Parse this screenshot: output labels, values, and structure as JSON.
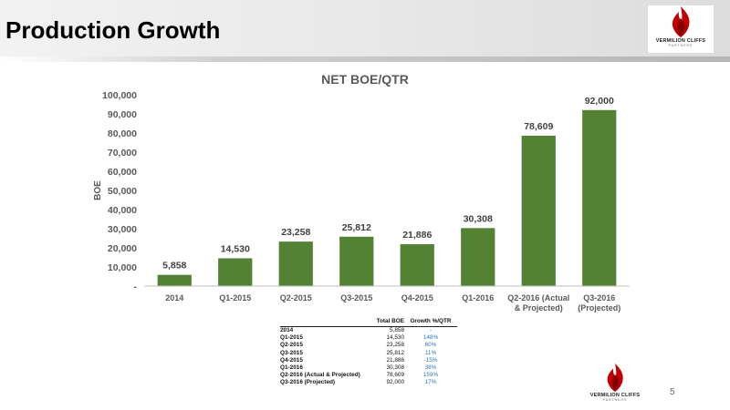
{
  "slide": {
    "title": "Production Growth",
    "page_number": "5"
  },
  "logo": {
    "name": "VERMILION CLIFFS",
    "sub": "PARTNERS",
    "icon": "flame-icon"
  },
  "colors": {
    "bar": "#548235",
    "growth_text": "#2e75b6"
  },
  "chart_data": {
    "type": "bar",
    "title": "NET BOE/QTR",
    "ylabel": "BOE",
    "xlabel": "",
    "ylim": [
      0,
      100000
    ],
    "yticks": [
      0,
      10000,
      20000,
      30000,
      40000,
      50000,
      60000,
      70000,
      80000,
      90000,
      100000
    ],
    "ytick_labels": [
      "-",
      "10,000",
      "20,000",
      "30,000",
      "40,000",
      "50,000",
      "60,000",
      "70,000",
      "80,000",
      "90,000",
      "100,000"
    ],
    "categories": [
      [
        "2014"
      ],
      [
        "Q1-2015"
      ],
      [
        "Q2-2015"
      ],
      [
        "Q3-2015"
      ],
      [
        "Q4-2015"
      ],
      [
        "Q1-2016"
      ],
      [
        "Q2-2016 (Actual",
        "& Projected)"
      ],
      [
        "Q3-2016",
        "(Projected)"
      ]
    ],
    "values": [
      5858,
      14530,
      23258,
      25812,
      21886,
      30308,
      78609,
      92000
    ],
    "data_labels": [
      "5,858",
      "14,530",
      "23,258",
      "25,812",
      "21,886",
      "30,308",
      "78,609",
      "92,000"
    ],
    "grid": false,
    "legend": "none"
  },
  "table": {
    "headers": [
      "",
      "Total BOE",
      "Growth %/QTR"
    ],
    "rows": [
      [
        "2014",
        "5,858",
        "-"
      ],
      [
        "Q1-2015",
        "14,530",
        "148%"
      ],
      [
        "Q2-2015",
        "23,258",
        "60%"
      ],
      [
        "Q3-2015",
        "25,812",
        "11%"
      ],
      [
        "Q4-2015",
        "21,886",
        "-15%"
      ],
      [
        "Q1-2016",
        "30,308",
        "38%"
      ],
      [
        "Q2-2016 (Actual & Projected)",
        "78,609",
        "159%"
      ],
      [
        "Q3-2016 (Projected)",
        "92,000",
        "17%"
      ]
    ]
  }
}
